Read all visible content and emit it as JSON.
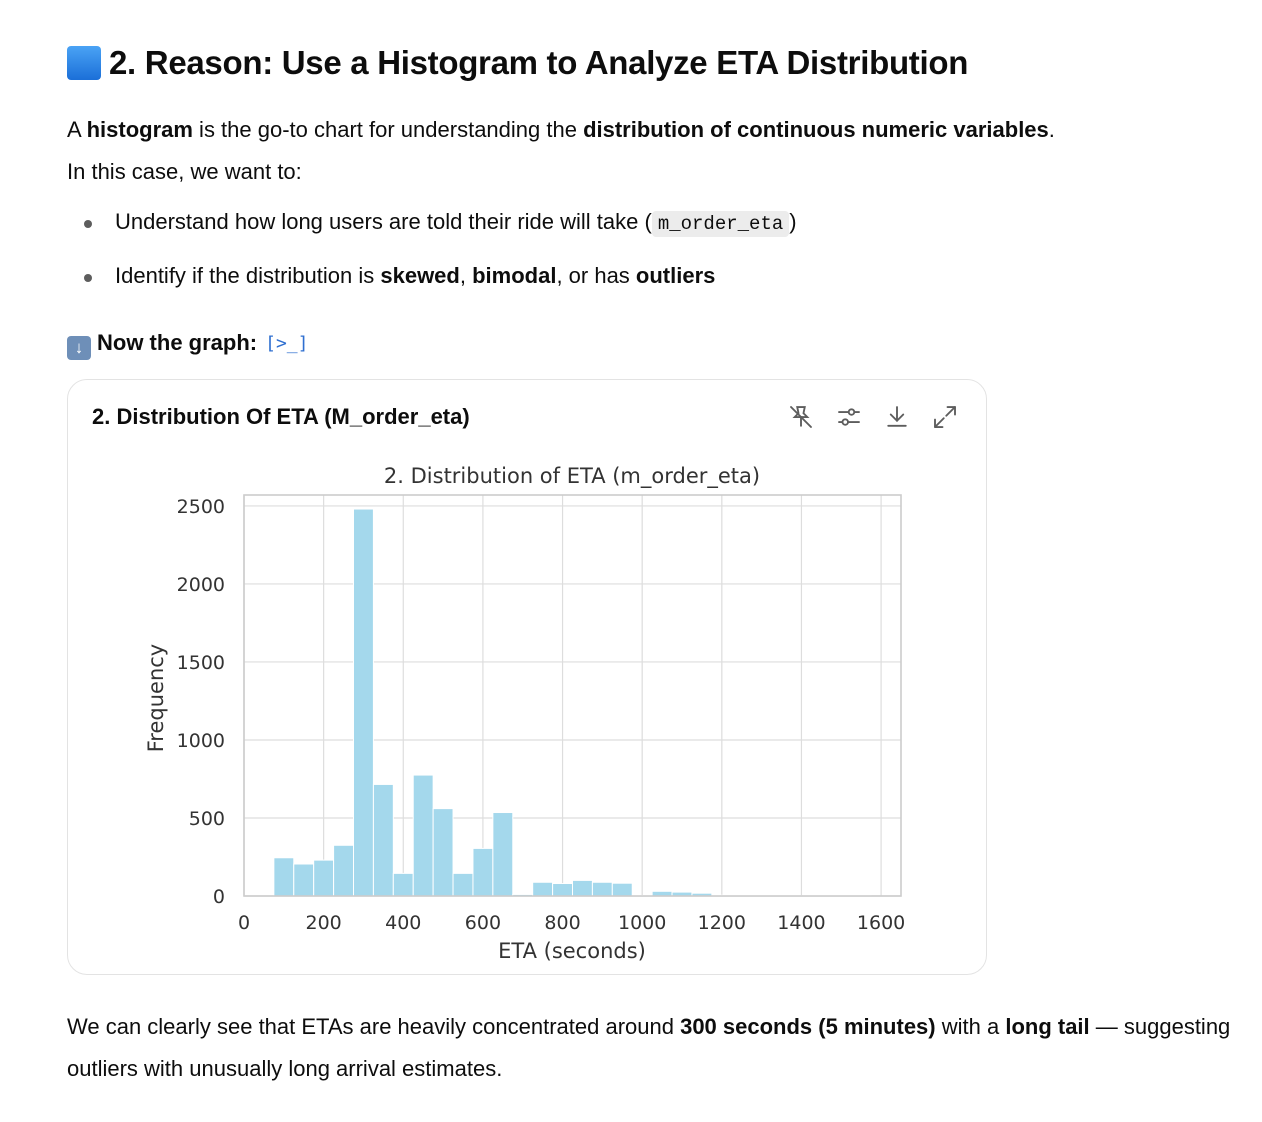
{
  "heading": {
    "pre": "2. Reason: Use a ",
    "bold": "Histogram",
    "post": " to Analyze ETA Distribution"
  },
  "intro": {
    "t1": "A ",
    "b1": "histogram",
    "t2": " is the go-to chart for understanding the ",
    "b2": "distribution of continuous numeric variables",
    "t3": ".",
    "line2": "In this case, we want to:"
  },
  "bullets": {
    "item1": {
      "text": "Understand how long users are told their ride will take (",
      "code": "m_order_eta",
      "end": ")"
    },
    "item2": {
      "t1": "Identify if the distribution is ",
      "b1": "skewed",
      "t2": ", ",
      "b2": "bimodal",
      "t3": ", or has ",
      "b3": "outliers"
    }
  },
  "graph_intro": {
    "label": "Now the graph:",
    "icon": "down-arrow-icon",
    "code_icon": "code-icon"
  },
  "card": {
    "title": "2. Distribution Of ETA (M_order_eta)",
    "tools": [
      "pin-off-icon",
      "sliders-icon",
      "download-icon",
      "expand-icon"
    ]
  },
  "chart_data": {
    "type": "bar",
    "title": "2. Distribution of ETA (m_order_eta)",
    "xlabel": "ETA (seconds)",
    "ylabel": "Frequency",
    "xlim": [
      0,
      1650
    ],
    "ylim": [
      0,
      2570
    ],
    "x_ticks": [
      0,
      200,
      400,
      600,
      800,
      1000,
      1200,
      1400,
      1600
    ],
    "y_ticks": [
      0,
      500,
      1000,
      1500,
      2000,
      2500
    ],
    "bin_width": 50,
    "bins": [
      {
        "start": 75,
        "value": 245
      },
      {
        "start": 125,
        "value": 205
      },
      {
        "start": 175,
        "value": 230
      },
      {
        "start": 225,
        "value": 325
      },
      {
        "start": 275,
        "value": 2480
      },
      {
        "start": 325,
        "value": 715
      },
      {
        "start": 375,
        "value": 145
      },
      {
        "start": 425,
        "value": 775
      },
      {
        "start": 475,
        "value": 560
      },
      {
        "start": 525,
        "value": 145
      },
      {
        "start": 575,
        "value": 305
      },
      {
        "start": 625,
        "value": 535
      },
      {
        "start": 675,
        "value": 10
      },
      {
        "start": 725,
        "value": 88
      },
      {
        "start": 775,
        "value": 80
      },
      {
        "start": 825,
        "value": 100
      },
      {
        "start": 875,
        "value": 88
      },
      {
        "start": 925,
        "value": 82
      },
      {
        "start": 975,
        "value": 3
      },
      {
        "start": 1025,
        "value": 30
      },
      {
        "start": 1075,
        "value": 25
      },
      {
        "start": 1125,
        "value": 18
      },
      {
        "start": 1175,
        "value": 5
      },
      {
        "start": 1225,
        "value": 3
      },
      {
        "start": 1275,
        "value": 3
      },
      {
        "start": 1325,
        "value": 3
      },
      {
        "start": 1375,
        "value": 2
      },
      {
        "start": 1425,
        "value": 2
      },
      {
        "start": 1475,
        "value": 2
      },
      {
        "start": 1525,
        "value": 2
      }
    ],
    "bar_color": "#a4d8ec",
    "grid": true
  },
  "conclusion": {
    "t1": "We can clearly see that ETAs are heavily concentrated around ",
    "b1": "300 seconds (5 minutes)",
    "t2": " with a ",
    "b2": "long tail",
    "t3": " — suggesting outliers with unusually long arrival estimates."
  }
}
